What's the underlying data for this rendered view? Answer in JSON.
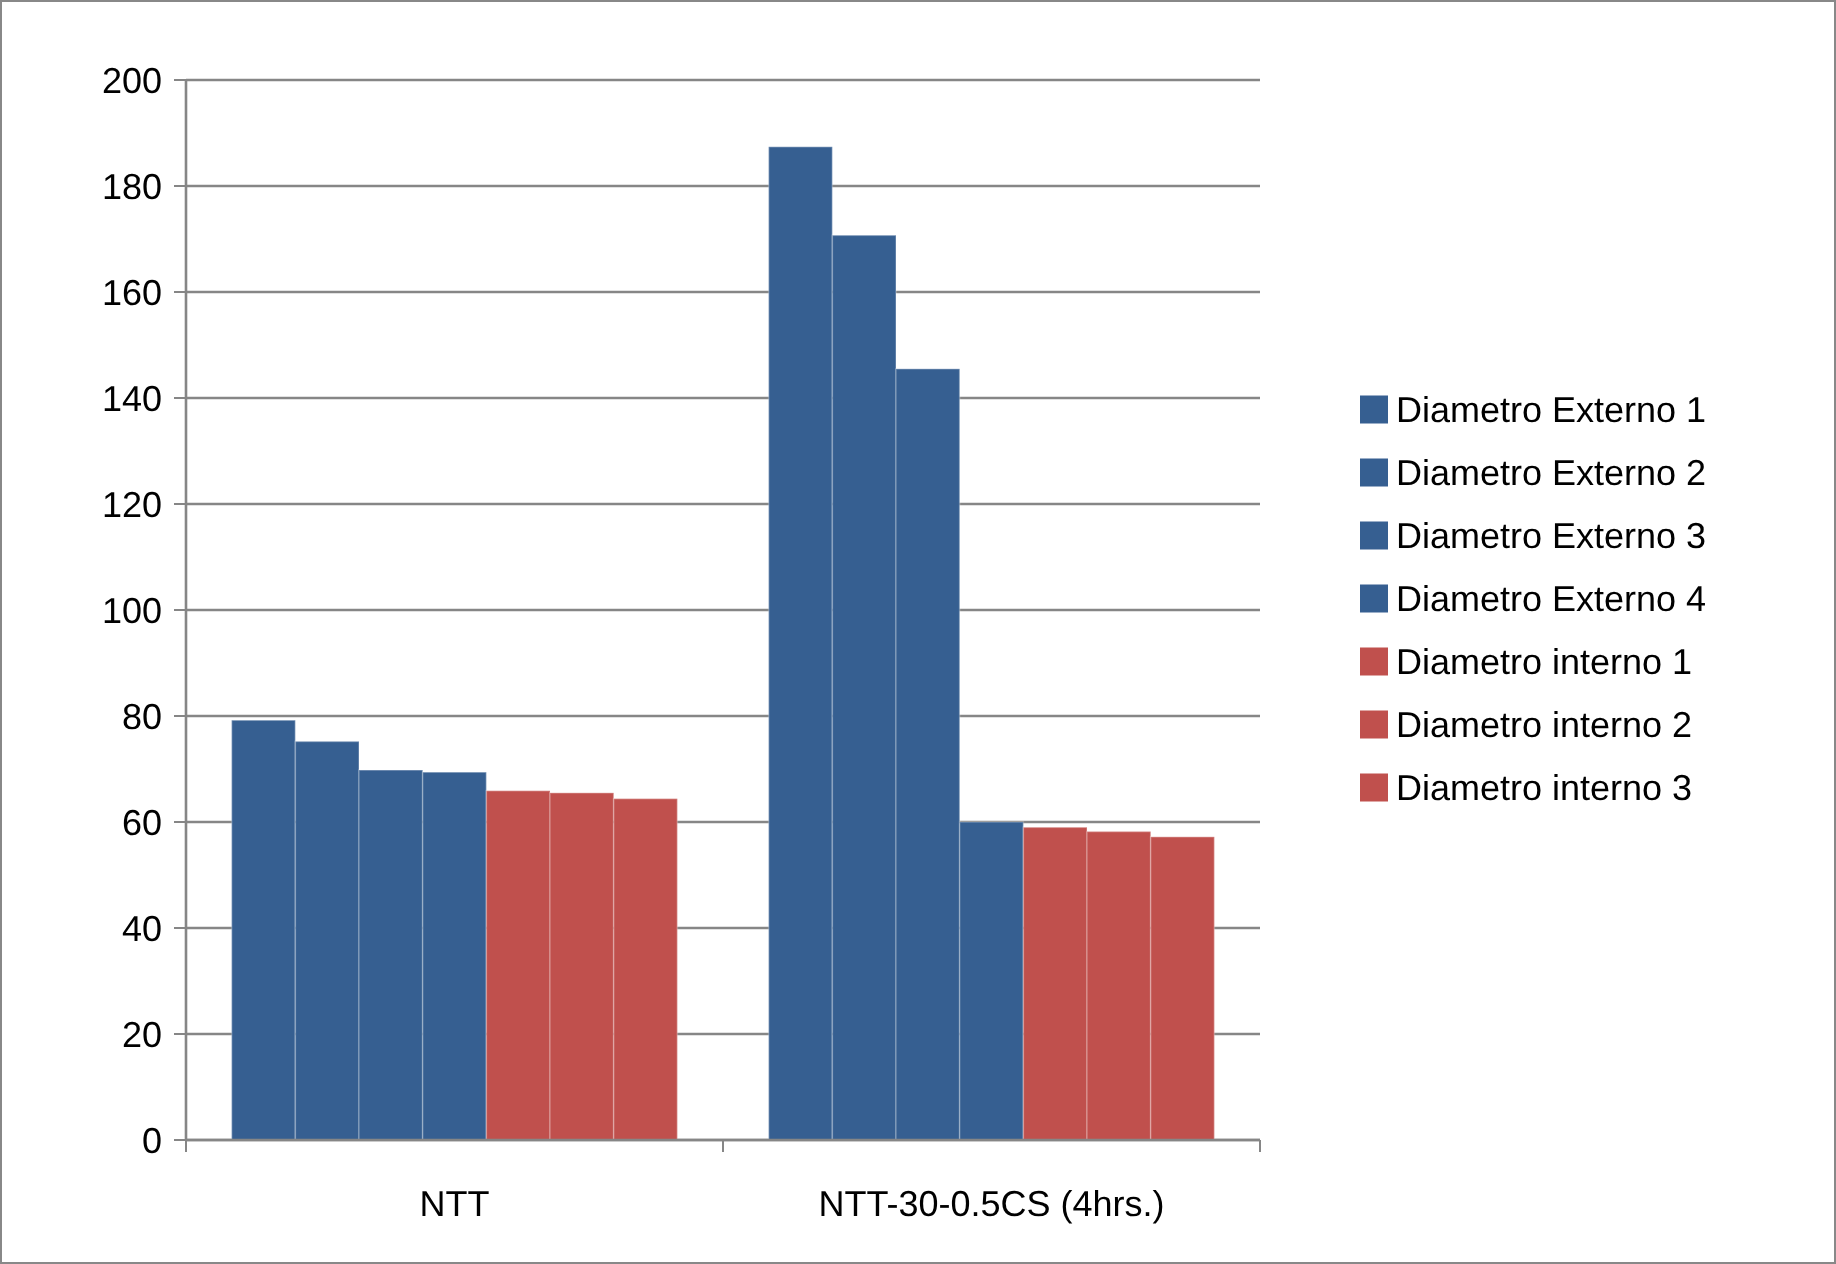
{
  "chart_data": {
    "type": "bar",
    "categories": [
      "NTT",
      "NTT-30-0.5CS (4hrs.)"
    ],
    "series": [
      {
        "name": "Diametro Externo 1",
        "color": "#365f91",
        "values": [
          79.2,
          187.4
        ]
      },
      {
        "name": "Diametro Externo 2",
        "color": "#365f91",
        "values": [
          75.2,
          170.7
        ]
      },
      {
        "name": "Diametro Externo 3",
        "color": "#365f91",
        "values": [
          69.8,
          145.5
        ]
      },
      {
        "name": "Diametro Externo 4",
        "color": "#365f91",
        "values": [
          69.4,
          60.0
        ]
      },
      {
        "name": "Diametro interno 1",
        "color": "#c0504d",
        "values": [
          65.9,
          59.0
        ]
      },
      {
        "name": "Diametro interno 2",
        "color": "#c0504d",
        "values": [
          65.5,
          58.2
        ]
      },
      {
        "name": "Diametro interno 3",
        "color": "#c0504d",
        "values": [
          64.4,
          57.2
        ]
      }
    ],
    "ylim": [
      0,
      200
    ],
    "yticks": [
      0,
      20,
      40,
      60,
      80,
      100,
      120,
      140,
      160,
      180,
      200
    ],
    "grid": "y",
    "legend": "right"
  }
}
